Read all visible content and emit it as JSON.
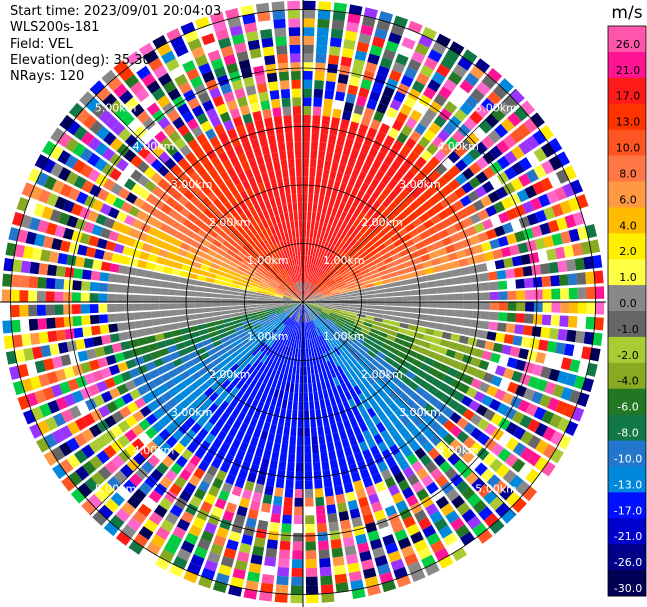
{
  "header": {
    "start_time": "Start time: 2023/09/01 20:04:03",
    "station": "WLS200s-181",
    "field": "Field: VEL",
    "elevation": "Elevation(deg): 35.30",
    "nrays": "NRays: 120"
  },
  "chart_data": {
    "type": "ppi",
    "field": "VEL",
    "elevation_deg": 35.3,
    "nrays": 120,
    "range_rings_km": [
      1.0,
      2.0,
      3.0,
      4.0,
      5.0
    ],
    "ring_labels": [
      "1.00km",
      "2.00km",
      "3.00km",
      "4.00km",
      "5.00km"
    ],
    "crosshair": true,
    "colorbar": {
      "unit": "m/s",
      "ticks": [
        "26.0",
        "21.0",
        "17.0",
        "13.0",
        "10.0",
        "8.0",
        "6.0",
        "4.0",
        "2.0",
        "1.0",
        "0.0",
        "-1.0",
        "-2.0",
        "-4.0",
        "-6.0",
        "-8.0",
        "-10.0",
        "-13.0",
        "-17.0",
        "-21.0",
        "-26.0",
        "-30.0"
      ],
      "colors": [
        "#ff55aa",
        "#ff1493",
        "#ff1a1a",
        "#ff3300",
        "#ff5522",
        "#ff7744",
        "#ff9944",
        "#ffbb00",
        "#ffee00",
        "#ffff44",
        "#888888",
        "#666666",
        "#aacc33",
        "#88aa22",
        "#227722",
        "#117744",
        "#2277cc",
        "#0088dd",
        "#0011ff",
        "#0000cc",
        "#000088",
        "#000055"
      ]
    }
  }
}
